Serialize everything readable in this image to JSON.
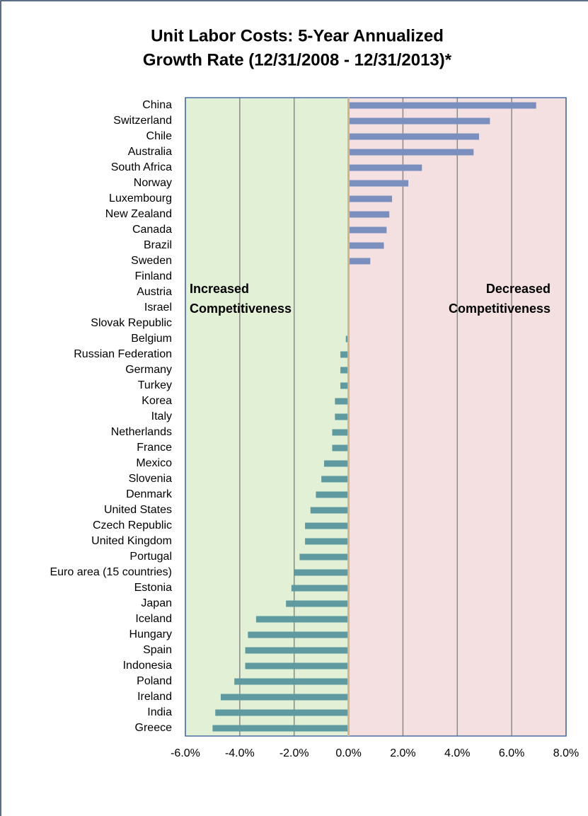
{
  "chart_data": {
    "type": "bar",
    "orientation": "horizontal",
    "title": [
      "Unit Labor Costs: 5-Year Annualized",
      "Growth Rate (12/31/2008 - 12/31/2013)*"
    ],
    "categories": [
      "China",
      "Switzerland",
      "Chile",
      "Australia",
      "South Africa",
      "Norway",
      "Luxembourg",
      "New Zealand",
      "Canada",
      "Brazil",
      "Sweden",
      "Finland",
      "Austria",
      "Israel",
      "Slovak Republic",
      "Belgium",
      "Russian Federation",
      "Germany",
      "Turkey",
      "Korea",
      "Italy",
      "Netherlands",
      "France",
      "Mexico",
      "Slovenia",
      "Denmark",
      "United States",
      "Czech Republic",
      "United Kingdom",
      "Portugal",
      "Euro area (15 countries)",
      "Estonia",
      "Japan",
      "Iceland",
      "Hungary",
      "Spain",
      "Indonesia",
      "Poland",
      "Ireland",
      "India",
      "Greece"
    ],
    "values": [
      6.9,
      5.2,
      4.8,
      4.6,
      2.7,
      2.2,
      1.6,
      1.5,
      1.4,
      1.3,
      0.8,
      0,
      0,
      0,
      0,
      -0.1,
      -0.3,
      -0.3,
      -0.3,
      -0.5,
      -0.5,
      -0.6,
      -0.6,
      -0.9,
      -1.0,
      -1.2,
      -1.4,
      -1.6,
      -1.6,
      -1.8,
      -2.0,
      -2.1,
      -2.3,
      -3.4,
      -3.7,
      -3.8,
      -3.8,
      -4.2,
      -4.7,
      -4.9,
      -5.0
    ],
    "color_positive": "#7b8fbf",
    "color_negative": "#5e9aa0",
    "xlim": [
      -6,
      8
    ],
    "xticks": [
      {
        "value": -6,
        "label": "-6.0%"
      },
      {
        "value": -4,
        "label": "-4.0%"
      },
      {
        "value": -2,
        "label": "-2.0%"
      },
      {
        "value": 0,
        "label": "0.0%"
      },
      {
        "value": 2,
        "label": "2.0%"
      },
      {
        "value": 4,
        "label": "4.0%"
      },
      {
        "value": 6,
        "label": "6.0%"
      },
      {
        "value": 8,
        "label": "8.0%"
      }
    ],
    "grid": true,
    "negative_region_color": "#e2f0d5",
    "positive_region_color": "#f4e0e0",
    "annotations": [
      [
        "Increased",
        "Competitiveness"
      ],
      [
        "Decreased",
        "Competitiveness"
      ]
    ]
  }
}
